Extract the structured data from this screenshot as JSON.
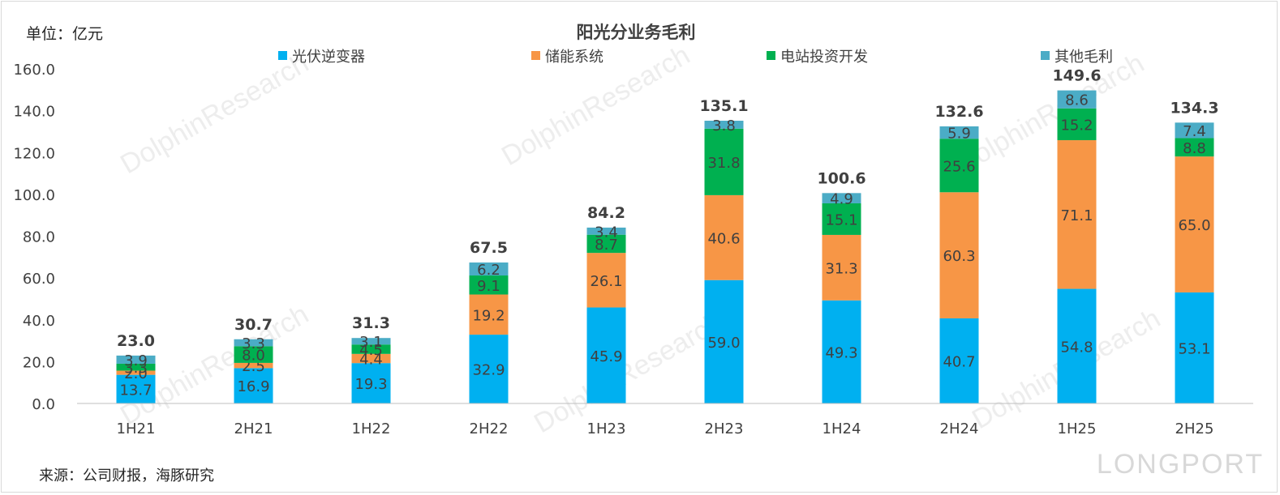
{
  "chart_data": {
    "type": "bar",
    "stacked": true,
    "title": "阳光分业务毛利",
    "unit_label": "单位：亿元",
    "source": "来源：公司财报，海豚研究",
    "categories": [
      "1H21",
      "2H21",
      "1H22",
      "2H22",
      "1H23",
      "2H23",
      "1H24",
      "2H24",
      "1H25",
      "2H25"
    ],
    "series": [
      {
        "name": "光伏逆变器",
        "color": "#00b0f0",
        "values": [
          13.7,
          16.9,
          19.3,
          32.9,
          45.9,
          59.0,
          49.3,
          40.7,
          54.8,
          53.1
        ]
      },
      {
        "name": "储能系统",
        "color": "#f79646",
        "values": [
          2.0,
          2.5,
          4.4,
          19.2,
          26.1,
          40.6,
          31.3,
          60.3,
          71.1,
          65.0
        ]
      },
      {
        "name": "电站投资开发",
        "color": "#00b050",
        "values": [
          3.3,
          8.0,
          4.5,
          9.1,
          8.7,
          31.8,
          15.1,
          25.6,
          15.2,
          8.8
        ]
      },
      {
        "name": "其他毛利",
        "color": "#4bacc6",
        "values": [
          3.9,
          3.3,
          3.1,
          6.2,
          3.4,
          3.8,
          4.9,
          5.9,
          8.6,
          7.4
        ]
      }
    ],
    "totals": [
      23.0,
      30.7,
      31.3,
      67.5,
      84.2,
      135.1,
      100.6,
      132.6,
      149.6,
      134.3
    ],
    "yticks": [
      "0.0",
      "20.0",
      "40.0",
      "60.0",
      "80.0",
      "100.0",
      "120.0",
      "140.0",
      "160.0"
    ],
    "ylim": [
      0,
      160
    ],
    "legend_position": "top",
    "watermarks": [
      "DolphinResearch",
      "DolphinResearch",
      "DolphinResearch",
      "DolphinResearch",
      "DolphinResearch"
    ],
    "brand_watermark": "LONGPORT"
  }
}
